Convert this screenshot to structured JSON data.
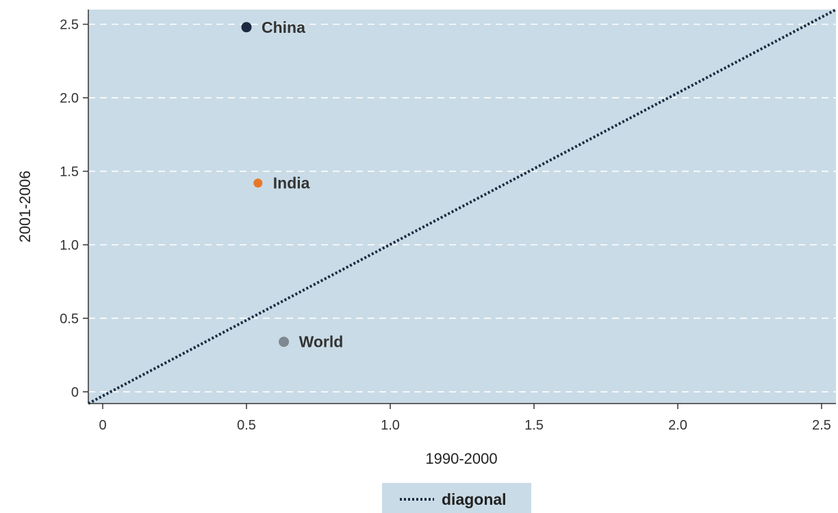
{
  "chart_data": {
    "type": "scatter",
    "xlabel": "1990-2000",
    "ylabel": "2001-2006",
    "xlim": [
      -0.05,
      2.55
    ],
    "ylim": [
      -0.08,
      2.6
    ],
    "xticks": [
      {
        "value": 0,
        "label": "0"
      },
      {
        "value": 0.5,
        "label": "0.5"
      },
      {
        "value": 1.0,
        "label": "1.0"
      },
      {
        "value": 1.5,
        "label": "1.5"
      },
      {
        "value": 2.0,
        "label": "2.0"
      },
      {
        "value": 2.5,
        "label": "2.5"
      }
    ],
    "yticks": [
      {
        "value": 0,
        "label": "0"
      },
      {
        "value": 0.5,
        "label": "0.5"
      },
      {
        "value": 1.0,
        "label": "1.0"
      },
      {
        "value": 1.5,
        "label": "1.5"
      },
      {
        "value": 2.0,
        "label": "2.0"
      },
      {
        "value": 2.5,
        "label": "2.5"
      }
    ],
    "grid": {
      "horizontal": true,
      "style": "dashed",
      "color": "#ffffff"
    },
    "points": [
      {
        "label": "China",
        "x": 0.5,
        "y": 2.48,
        "color": "#1b2a41"
      },
      {
        "label": "India",
        "x": 0.54,
        "y": 1.42,
        "color": "#e8772a"
      },
      {
        "label": "World",
        "x": 0.63,
        "y": 0.34,
        "color": "#7f8790"
      }
    ],
    "reference_line": {
      "name": "diagonal",
      "style": "dotted",
      "color": "#1b2a41",
      "from": [
        -0.05,
        -0.08
      ],
      "to": [
        2.55,
        2.6
      ]
    },
    "legend": {
      "position": "bottom-center",
      "entries": [
        {
          "label": "diagonal",
          "style": "dotted"
        }
      ]
    },
    "colors": {
      "plot_background": "#c9dbe6",
      "legend_background": "#c9dbe6",
      "axis": "#333333"
    }
  }
}
